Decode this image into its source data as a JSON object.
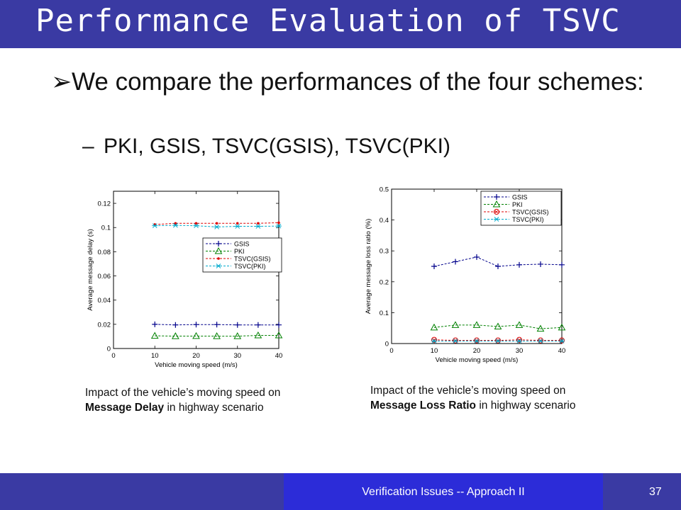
{
  "title": "Performance Evaluation of TSVC",
  "bullet_main": "We compare the performances of the four schemes:",
  "bullet_sub": "PKI, GSIS, TSVC(GSIS), TSVC(PKI)",
  "captions": [
    {
      "line1": "Impact of the vehicle’s moving speed on",
      "bold": "Message Delay",
      "rest": " in highway scenario"
    },
    {
      "line1": "Impact of the vehicle’s moving speed on",
      "bold": "Message Loss Ratio",
      "rest": " in highway scenario"
    }
  ],
  "footer": {
    "text": "Verification Issues -- Approach II",
    "page": "37"
  },
  "chart_data": [
    {
      "type": "line",
      "xlabel": "Vehicle moving speed (m/s)",
      "ylabel": "Average message delay (s)",
      "xlim": [
        0,
        40
      ],
      "ylim": [
        0,
        0.13
      ],
      "xticks": [
        0,
        10,
        20,
        30,
        40
      ],
      "yticks": [
        0,
        0.02,
        0.04,
        0.06,
        0.08,
        0.1,
        0.12
      ],
      "ytick_labels": [
        "0",
        "0.02",
        "0.04",
        "0.06",
        "0.08",
        "0.1",
        "0.12"
      ],
      "grid": false,
      "legend_position": "right",
      "x": [
        10,
        15,
        20,
        25,
        30,
        35,
        40
      ],
      "series": [
        {
          "name": "GSIS",
          "color": "#00008b",
          "marker": "plus",
          "values": [
            0.02,
            0.0195,
            0.0198,
            0.0198,
            0.0195,
            0.0195,
            0.0195
          ]
        },
        {
          "name": "PKI",
          "color": "#008000",
          "marker": "triangle",
          "values": [
            0.0105,
            0.0102,
            0.0103,
            0.0102,
            0.0102,
            0.0108,
            0.0108
          ]
        },
        {
          "name": "TSVC(GSIS)",
          "color": "#dd0000",
          "marker": "dot",
          "values": [
            0.1025,
            0.1035,
            0.1035,
            0.1035,
            0.1035,
            0.1035,
            0.104
          ]
        },
        {
          "name": "TSVC(PKI)",
          "color": "#00aacc",
          "marker": "star",
          "values": [
            0.1015,
            0.1018,
            0.1015,
            0.1005,
            0.101,
            0.101,
            0.1012
          ]
        }
      ]
    },
    {
      "type": "line",
      "xlabel": "Vehicle moving speed (m/s)",
      "ylabel": "Average message loss ratio (%)",
      "xlim": [
        0,
        40
      ],
      "ylim": [
        0,
        0.5
      ],
      "xticks": [
        0,
        10,
        20,
        30,
        40
      ],
      "yticks": [
        0,
        0.1,
        0.2,
        0.3,
        0.4,
        0.5
      ],
      "ytick_labels": [
        "0",
        "0.1",
        "0.2",
        "0.3",
        "0.4",
        "0.5"
      ],
      "grid": false,
      "legend_position": "top-right",
      "x": [
        10,
        15,
        20,
        25,
        30,
        35,
        40
      ],
      "series": [
        {
          "name": "GSIS",
          "color": "#00008b",
          "marker": "plus",
          "values": [
            0.25,
            0.265,
            0.28,
            0.25,
            0.255,
            0.257,
            0.255
          ]
        },
        {
          "name": "PKI",
          "color": "#008000",
          "marker": "triangle",
          "values": [
            0.052,
            0.06,
            0.06,
            0.055,
            0.06,
            0.048,
            0.052
          ]
        },
        {
          "name": "TSVC(GSIS)",
          "color": "#dd0000",
          "marker": "circle",
          "values": [
            0.012,
            0.01,
            0.01,
            0.01,
            0.012,
            0.01,
            0.01
          ]
        },
        {
          "name": "TSVC(PKI)",
          "color": "#00aacc",
          "marker": "star",
          "values": [
            0.008,
            0.008,
            0.008,
            0.008,
            0.008,
            0.008,
            0.008
          ]
        }
      ]
    }
  ]
}
